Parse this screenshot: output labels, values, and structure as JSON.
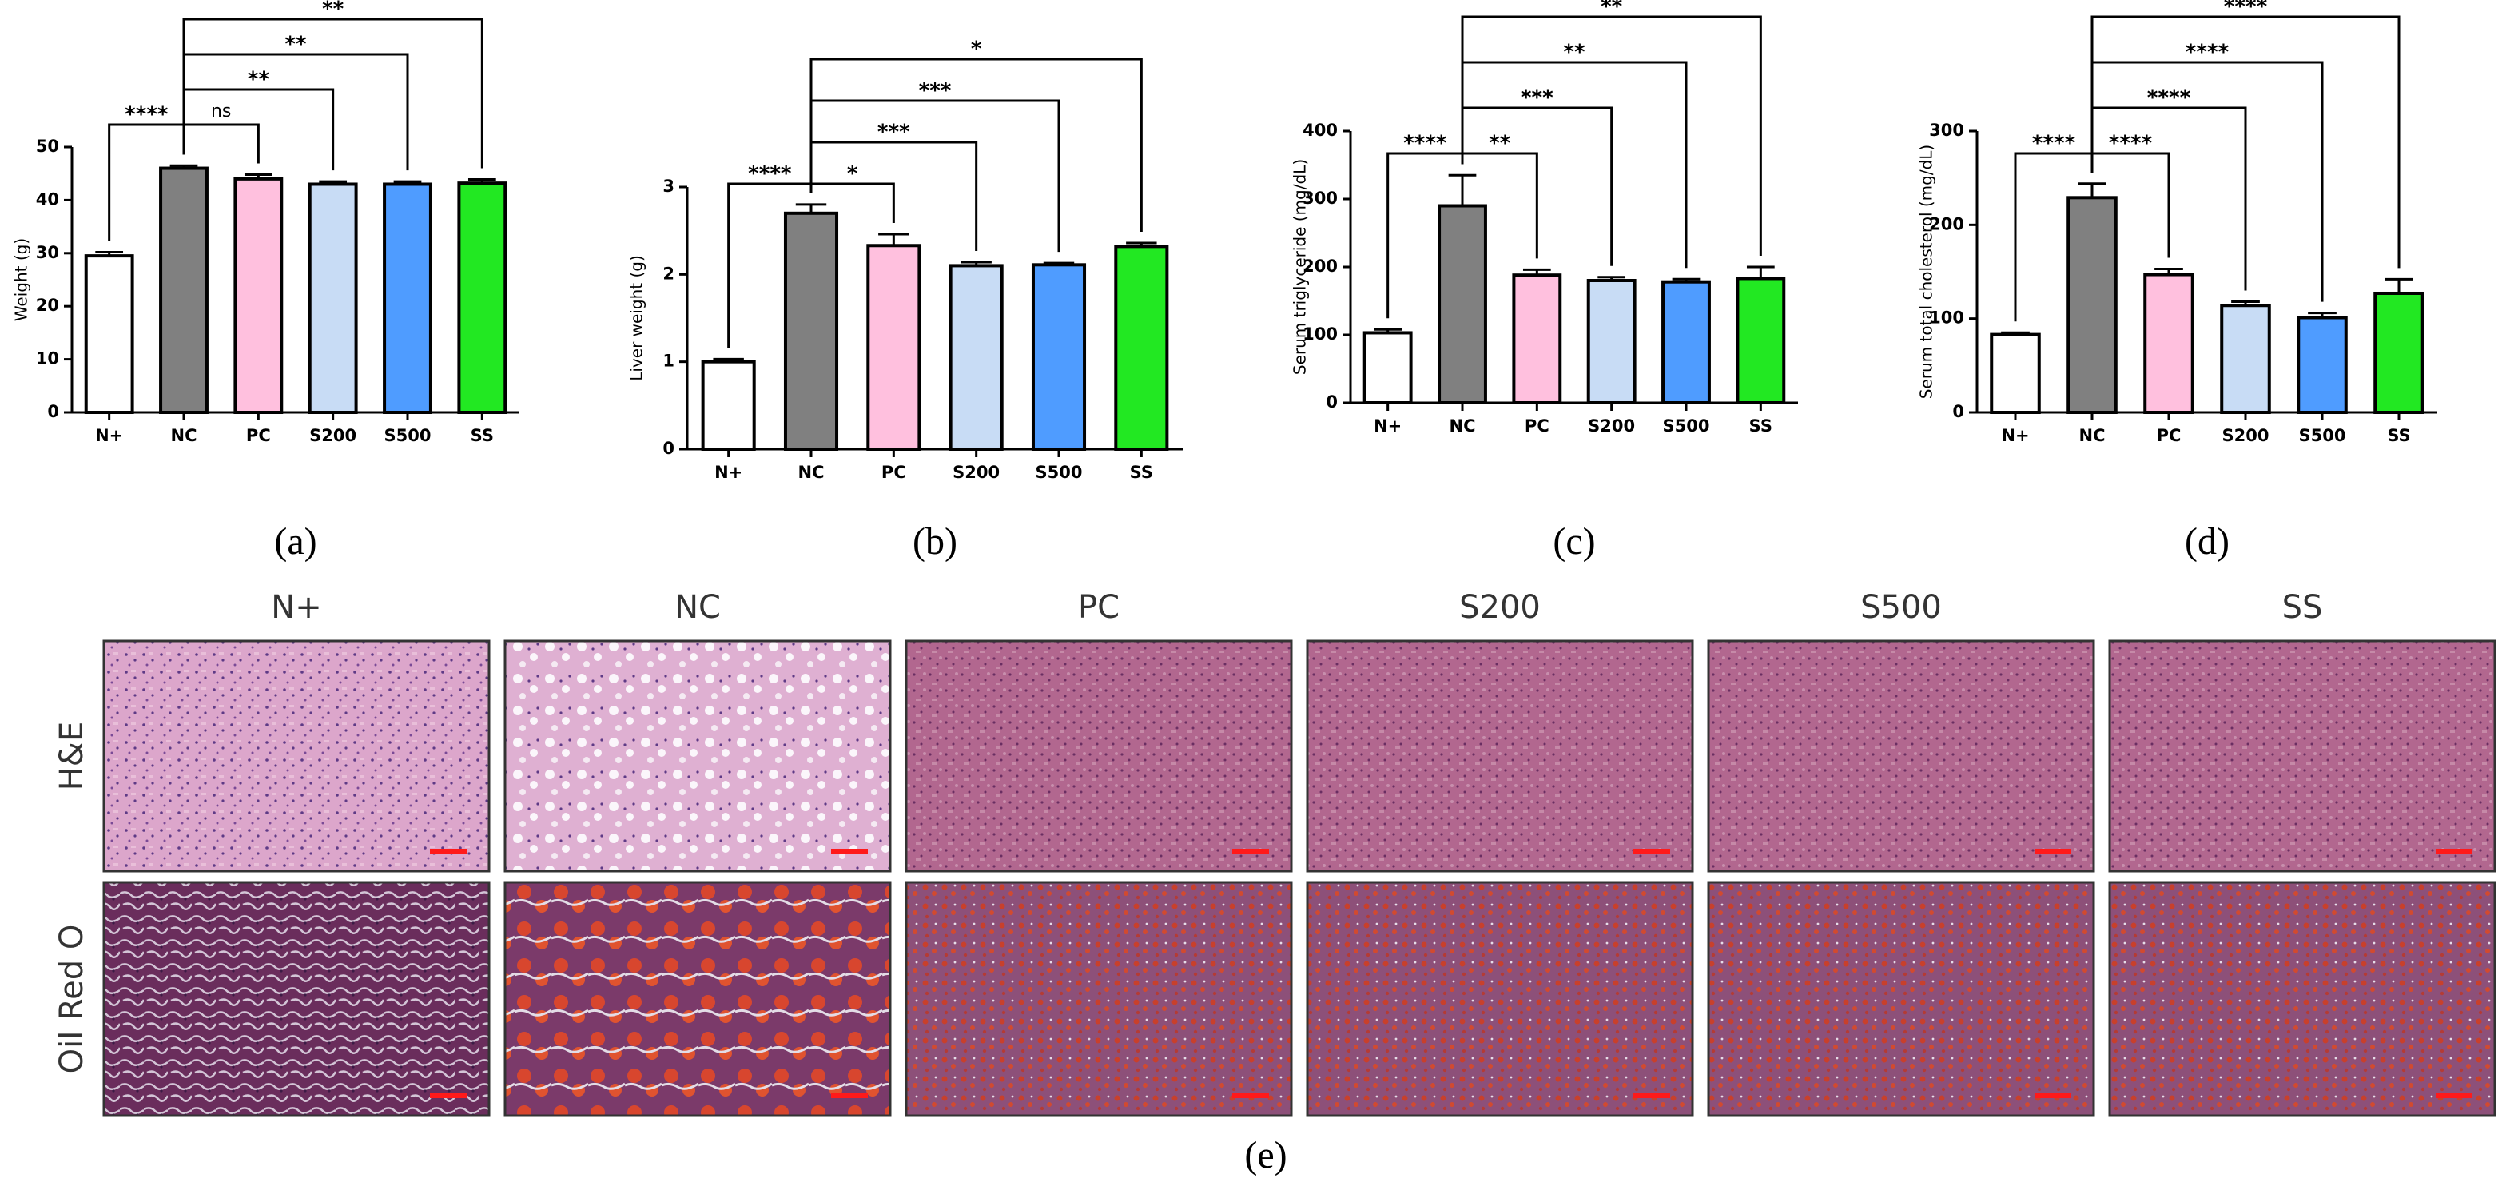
{
  "chart_data": [
    {
      "type": "bar",
      "label": "(a)",
      "y_label": "Weight (g)",
      "categories": [
        "N+",
        "NC",
        "PC",
        "S200",
        "S500",
        "SS"
      ],
      "values": [
        29.5,
        46,
        44,
        43,
        43,
        43.2
      ],
      "errors": [
        0.7,
        0.5,
        0.8,
        0.5,
        0.5,
        0.7
      ],
      "colors": [
        "#ffffff",
        "#808080",
        "#ffc0de",
        "#c8dcf5",
        "#4f9cff",
        "#22e822"
      ],
      "ylim": [
        0,
        50
      ],
      "yticks": [
        0,
        10,
        20,
        30,
        40,
        50
      ],
      "annotations": [
        {
          "from": "N+",
          "to": "NC",
          "text": "****"
        },
        {
          "from": "NC",
          "to": "PC",
          "text": "ns"
        },
        {
          "from": "NC",
          "to": "S200",
          "text": "**"
        },
        {
          "from": "NC",
          "to": "S500",
          "text": "**"
        },
        {
          "from": "NC",
          "to": "SS",
          "text": "**"
        }
      ]
    },
    {
      "type": "bar",
      "label": "(b)",
      "y_label": "Liver weight (g)",
      "categories": [
        "N+",
        "NC",
        "PC",
        "S200",
        "S500",
        "SS"
      ],
      "values": [
        1.0,
        2.7,
        2.33,
        2.1,
        2.11,
        2.32
      ],
      "errors": [
        0.03,
        0.1,
        0.13,
        0.04,
        0.02,
        0.04
      ],
      "colors": [
        "#ffffff",
        "#808080",
        "#ffc0de",
        "#c8dcf5",
        "#4f9cff",
        "#22e822"
      ],
      "ylim": [
        0,
        3
      ],
      "yticks": [
        0,
        1,
        2,
        3
      ],
      "annotations": [
        {
          "from": "N+",
          "to": "NC",
          "text": "****"
        },
        {
          "from": "NC",
          "to": "PC",
          "text": "*"
        },
        {
          "from": "NC",
          "to": "S200",
          "text": "***"
        },
        {
          "from": "NC",
          "to": "S500",
          "text": "***"
        },
        {
          "from": "NC",
          "to": "SS",
          "text": "*"
        }
      ]
    },
    {
      "type": "bar",
      "label": "(c)",
      "y_label": "Serum triglyceride (mg/dL)",
      "categories": [
        "N+",
        "NC",
        "PC",
        "S200",
        "S500",
        "SS"
      ],
      "values": [
        103,
        290,
        188,
        180,
        178,
        183
      ],
      "errors": [
        5,
        45,
        8,
        5,
        4,
        17
      ],
      "colors": [
        "#ffffff",
        "#808080",
        "#ffc0de",
        "#c8dcf5",
        "#4f9cff",
        "#22e822"
      ],
      "ylim": [
        0,
        400
      ],
      "yticks": [
        0,
        100,
        200,
        300,
        400
      ],
      "annotations": [
        {
          "from": "N+",
          "to": "NC",
          "text": "****"
        },
        {
          "from": "NC",
          "to": "PC",
          "text": "**"
        },
        {
          "from": "NC",
          "to": "S200",
          "text": "***"
        },
        {
          "from": "NC",
          "to": "S500",
          "text": "**"
        },
        {
          "from": "NC",
          "to": "SS",
          "text": "**"
        }
      ]
    },
    {
      "type": "bar",
      "label": "(d)",
      "y_label": "Serum total cholesterol (mg/dL)",
      "categories": [
        "N+",
        "NC",
        "PC",
        "S200",
        "S500",
        "SS"
      ],
      "values": [
        83,
        229,
        147,
        114,
        101,
        127
      ],
      "errors": [
        2,
        15,
        6,
        4,
        5,
        15
      ],
      "colors": [
        "#ffffff",
        "#808080",
        "#ffc0de",
        "#c8dcf5",
        "#4f9cff",
        "#22e822"
      ],
      "ylim": [
        0,
        300
      ],
      "yticks": [
        0,
        100,
        200,
        300
      ],
      "annotations": [
        {
          "from": "N+",
          "to": "NC",
          "text": "****"
        },
        {
          "from": "NC",
          "to": "PC",
          "text": "****"
        },
        {
          "from": "NC",
          "to": "S200",
          "text": "****"
        },
        {
          "from": "NC",
          "to": "S500",
          "text": "****"
        },
        {
          "from": "NC",
          "to": "SS",
          "text": "****"
        }
      ]
    }
  ],
  "histology": {
    "label": "(e)",
    "columns": [
      "N+",
      "NC",
      "PC",
      "S200",
      "S500",
      "SS"
    ],
    "rows": [
      "H&E",
      "Oil Red O"
    ]
  }
}
